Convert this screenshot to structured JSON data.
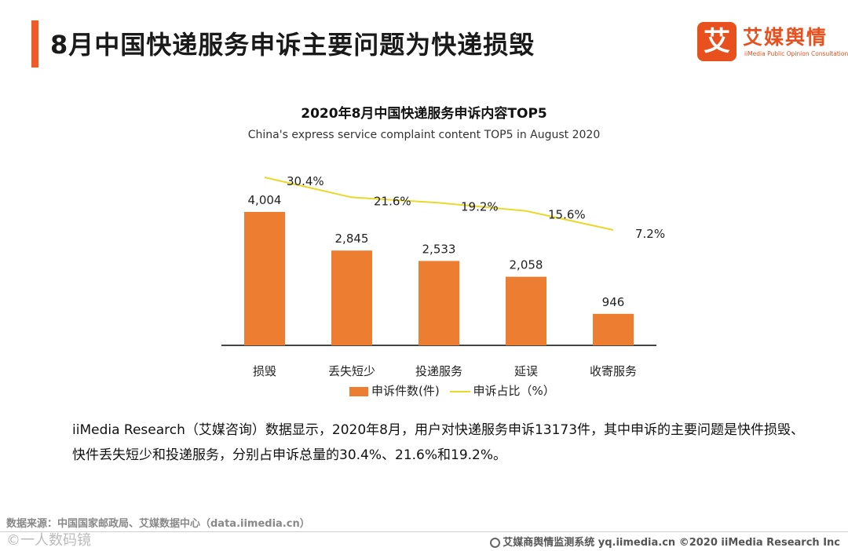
{
  "header": {
    "title": "8月中国快递服务申诉主要问题为快递损毁",
    "accent_color": "#f05a28"
  },
  "logo": {
    "mark": "艾",
    "name_cn": "艾媒舆情",
    "name_en": "iiMedia Public Opinion Consultation",
    "color": "#e8501e"
  },
  "chart_data": {
    "type": "bar",
    "title": "2020年8月中国快递服务申诉内容TOP5",
    "subtitle": "China's express service complaint content TOP5 in August 2020",
    "categories": [
      "损毁",
      "丢失短少",
      "投递服务",
      "延误",
      "收寄服务"
    ],
    "series": [
      {
        "name": "申诉件数(件)",
        "type": "bar",
        "values": [
          4004,
          2845,
          2533,
          2058,
          946
        ],
        "labels": [
          "4,004",
          "2,845",
          "2,533",
          "2,058",
          "946"
        ],
        "color": "#ed7d31"
      },
      {
        "name": "申诉占比（%）",
        "type": "line",
        "values": [
          30.4,
          21.6,
          19.2,
          15.6,
          7.2
        ],
        "labels": [
          "30.4%",
          "21.6%",
          "19.2%",
          "15.6%",
          "7.2%"
        ],
        "color": "#e8d92a"
      }
    ],
    "legend": "bottom",
    "grid": false
  },
  "description": "iiMedia Research（艾媒咨询）数据显示，2020年8月，用户对快递服务申诉13173件，其中申诉的主要问题是快件损毁、快件丢失短少和投递服务，分别占申诉总量的30.4%、21.6%和19.2%。",
  "source": "数据来源：中国国家邮政局、艾媒数据中心（data.iimedia.cn）",
  "watermark": "©一人数码镜",
  "footer": "艾媒商舆情监测系统 yq.iimedia.cn  ©2020  iiMedia Research  Inc"
}
